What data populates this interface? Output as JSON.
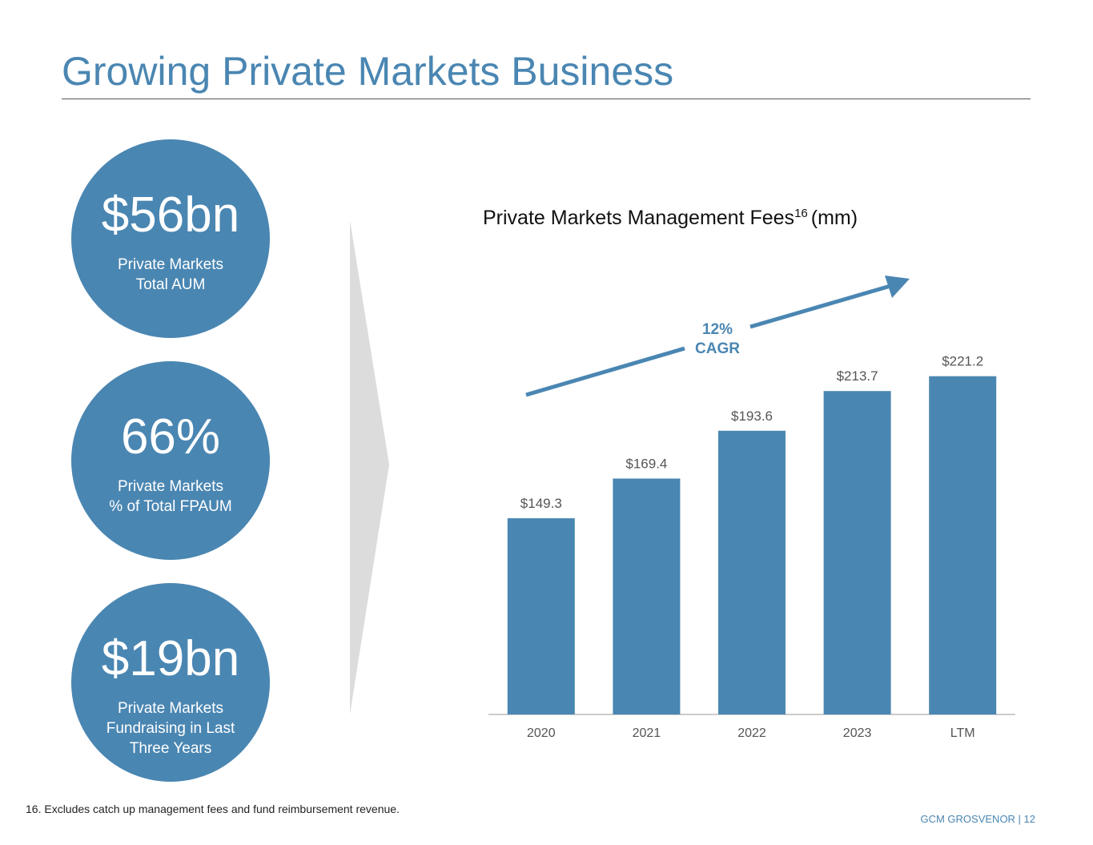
{
  "header": {
    "title": "Growing Private Markets Business"
  },
  "stats": [
    {
      "value": "$56bn",
      "label": [
        "Private Markets",
        "Total AUM"
      ]
    },
    {
      "value": "66%",
      "label": [
        "Private Markets",
        "% of Total FPAUM"
      ]
    },
    {
      "value": "$19bn",
      "label": [
        "Private Markets",
        "Fundraising in Last",
        "Three Years"
      ]
    }
  ],
  "chart_data": {
    "type": "bar",
    "title": "Private Markets Management Fees",
    "title_sup": "16",
    "title_unit": "(mm)",
    "categories": [
      "2020",
      "2021",
      "2022",
      "2023",
      "LTM"
    ],
    "values": [
      149.3,
      169.4,
      193.6,
      213.7,
      221.2
    ],
    "value_labels": [
      "$149.3",
      "$169.4",
      "$193.6",
      "$213.7",
      "$221.2"
    ],
    "color": "#4a86b2",
    "ylim": [
      50,
      230
    ],
    "annotation": [
      "12%",
      "CAGR"
    ]
  },
  "footnote": "16. Excludes catch up management fees and fund reimbursement revenue.",
  "footer": "GCM GROSVENOR | 12"
}
